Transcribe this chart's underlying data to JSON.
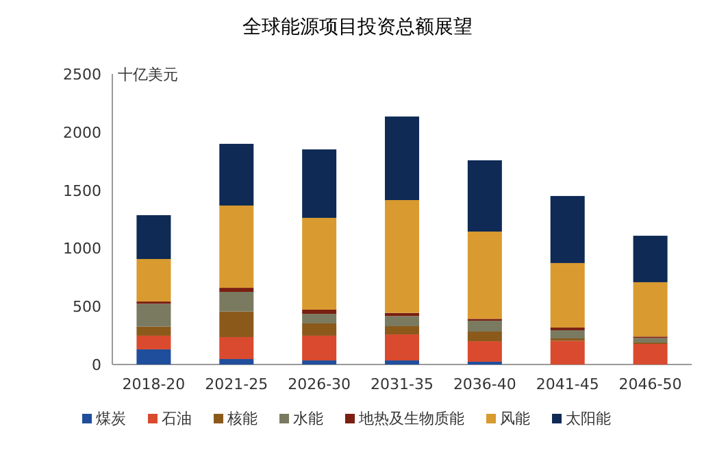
{
  "chart_data": {
    "type": "bar",
    "stacked": true,
    "title": "全球能源项目投资总额展望",
    "ylabel": "十亿美元",
    "categories": [
      "2018-20",
      "2021-25",
      "2026-30",
      "2031-35",
      "2036-40",
      "2041-45",
      "2046-50"
    ],
    "ylim": [
      0,
      2500
    ],
    "yticks": [
      0,
      500,
      1000,
      1500,
      2000,
      2500
    ],
    "grid": false,
    "legend": "bottom",
    "series": [
      {
        "name": "煤炭",
        "color": "#1f4e9c",
        "values": [
          130,
          47,
          35,
          35,
          24,
          0,
          0
        ]
      },
      {
        "name": "石油",
        "color": "#d94a2e",
        "values": [
          118,
          189,
          213,
          224,
          176,
          204,
          177
        ]
      },
      {
        "name": "核能",
        "color": "#8b5a1b",
        "values": [
          78,
          220,
          106,
          71,
          83,
          20,
          12
        ]
      },
      {
        "name": "水能",
        "color": "#7a7a60",
        "values": [
          197,
          169,
          82,
          87,
          94,
          71,
          39
        ]
      },
      {
        "name": "地热及生物质能",
        "color": "#7a1f12",
        "values": [
          19,
          35,
          36,
          27,
          16,
          23,
          12
        ]
      },
      {
        "name": "风能",
        "color": "#d99a30",
        "values": [
          366,
          708,
          790,
          971,
          751,
          555,
          468
        ]
      },
      {
        "name": "太阳能",
        "color": "#0e2a55",
        "values": [
          377,
          531,
          589,
          719,
          613,
          577,
          400
        ]
      }
    ]
  }
}
